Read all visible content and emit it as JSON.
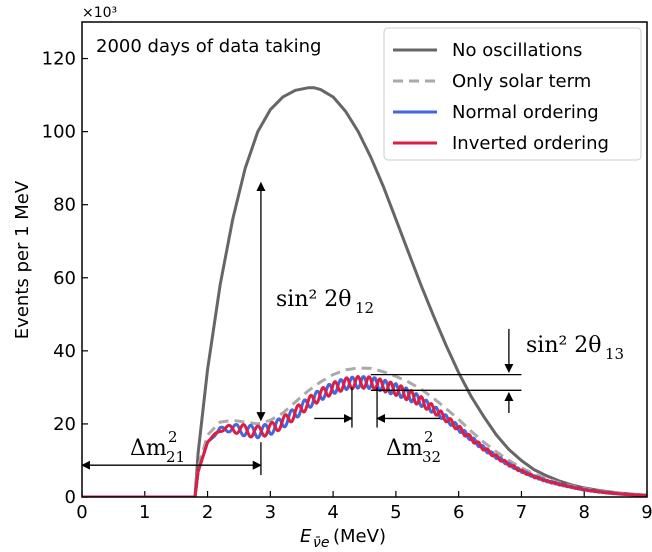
{
  "chart_data": {
    "type": "line",
    "title": "",
    "annotation_text": "2000 days of data taking",
    "xlabel": "E",
    "xlabel_sub": "ν̄e",
    "xlabel_unit": " (MeV)",
    "ylabel": "Events per 1 MeV",
    "y_multiplier": "×10³",
    "xlim": [
      0,
      9
    ],
    "ylim": [
      0,
      130
    ],
    "x_ticks": [
      0,
      1,
      2,
      3,
      4,
      5,
      6,
      7,
      8,
      9
    ],
    "y_ticks": [
      0,
      20,
      40,
      60,
      80,
      100,
      120
    ],
    "legend_position": "top-right",
    "grid": false,
    "series": [
      {
        "name": "No oscillations",
        "color": "#666666",
        "style": "solid",
        "x": [
          0,
          1.8,
          1.85,
          2.0,
          2.2,
          2.4,
          2.6,
          2.8,
          3.0,
          3.2,
          3.4,
          3.6,
          3.7,
          3.8,
          4.0,
          4.2,
          4.4,
          4.6,
          4.8,
          5.0,
          5.2,
          5.4,
          5.6,
          5.8,
          6.0,
          6.2,
          6.4,
          6.6,
          6.8,
          7.0,
          7.2,
          7.4,
          7.6,
          7.8,
          8.0,
          8.2,
          8.4,
          8.6,
          8.8,
          9.0
        ],
        "y": [
          0,
          0,
          12,
          35,
          58,
          76,
          90,
          100,
          106,
          109.5,
          111.3,
          112,
          112,
          111.5,
          109.5,
          105.5,
          100,
          93,
          85,
          76,
          67,
          58,
          49.5,
          41.5,
          34,
          27.5,
          22,
          17,
          13,
          10,
          7.5,
          5.8,
          4.4,
          3.3,
          2.5,
          1.9,
          1.4,
          1.0,
          0.7,
          0.5
        ]
      },
      {
        "name": "Only solar term",
        "color": "#aaaaaa",
        "style": "dashed",
        "x": [
          1.8,
          1.85,
          2.0,
          2.2,
          2.4,
          2.6,
          2.8,
          3.0,
          3.2,
          3.4,
          3.6,
          3.8,
          4.0,
          4.2,
          4.4,
          4.6,
          4.8,
          5.0,
          5.2,
          5.4,
          5.6,
          5.8,
          6.0,
          6.2,
          6.4,
          6.6,
          6.8,
          7.0,
          7.2,
          7.4,
          7.6,
          7.8,
          8.0,
          8.2,
          8.4,
          8.6,
          8.8,
          9.0
        ],
        "y": [
          0,
          8,
          17,
          20.5,
          21,
          20.5,
          20,
          21,
          23,
          26,
          29,
          31.5,
          33.5,
          34.8,
          35.3,
          35.2,
          34.3,
          33,
          31.5,
          29.5,
          27,
          24.2,
          21.2,
          18,
          15,
          12.4,
          10,
          8,
          6.3,
          5,
          3.9,
          3,
          2.3,
          1.7,
          1.3,
          1.0,
          0.7,
          0.5
        ]
      },
      {
        "name": "Normal ordering",
        "color": "#4466dd",
        "style": "solid",
        "x": [
          1.8,
          1.85,
          2.0,
          2.2,
          2.4,
          2.6,
          2.8,
          3.0,
          3.2,
          3.4,
          3.6,
          3.8,
          4.0,
          4.2,
          4.4,
          4.6,
          4.8,
          5.0,
          5.2,
          5.4,
          5.6,
          5.8,
          6.0,
          6.2,
          6.4,
          6.6,
          6.8,
          7.0,
          7.2,
          7.4,
          7.6,
          7.8,
          8.0,
          8.2,
          8.4,
          8.6,
          8.8,
          9.0
        ],
        "y": [
          0,
          7,
          15,
          18.5,
          18.8,
          18.2,
          17.8,
          18.6,
          20.4,
          23,
          25.7,
          28,
          29.8,
          31,
          31.4,
          31.3,
          30.5,
          29.4,
          28,
          26.2,
          24,
          21.5,
          18.8,
          16,
          13.3,
          11,
          8.9,
          7.1,
          5.6,
          4.4,
          3.5,
          2.7,
          2.0,
          1.5,
          1.1,
          0.8,
          0.6,
          0.4
        ]
      },
      {
        "name": "Inverted ordering",
        "color": "#dd1e44",
        "style": "solid",
        "x": [
          1.8,
          1.85,
          2.0,
          2.2,
          2.4,
          2.6,
          2.8,
          3.0,
          3.2,
          3.4,
          3.6,
          3.8,
          4.0,
          4.2,
          4.4,
          4.6,
          4.8,
          5.0,
          5.2,
          5.4,
          5.6,
          5.8,
          6.0,
          6.2,
          6.4,
          6.6,
          6.8,
          7.0,
          7.2,
          7.4,
          7.6,
          7.8,
          8.0,
          8.2,
          8.4,
          8.6,
          8.8,
          9.0
        ],
        "y": [
          0,
          7,
          15,
          18.5,
          18.8,
          18.2,
          17.8,
          18.6,
          20.4,
          23,
          25.7,
          28,
          29.8,
          31,
          31.4,
          31.3,
          30.5,
          29.4,
          28,
          26.2,
          24,
          21.5,
          18.8,
          16,
          13.3,
          11,
          8.9,
          7.1,
          5.6,
          4.4,
          3.5,
          2.7,
          2.0,
          1.5,
          1.1,
          0.8,
          0.6,
          0.4
        ]
      }
    ],
    "annotations": {
      "theta12_label": "sin² 2θ",
      "theta12_sub": "12",
      "theta13_label": "sin² 2θ",
      "theta13_sub": "13",
      "dm21_label": "Δm",
      "dm21_sup": "2",
      "dm21_sub": "21",
      "dm32_label": "Δm",
      "dm32_sup": "2",
      "dm32_sub": "32"
    }
  }
}
